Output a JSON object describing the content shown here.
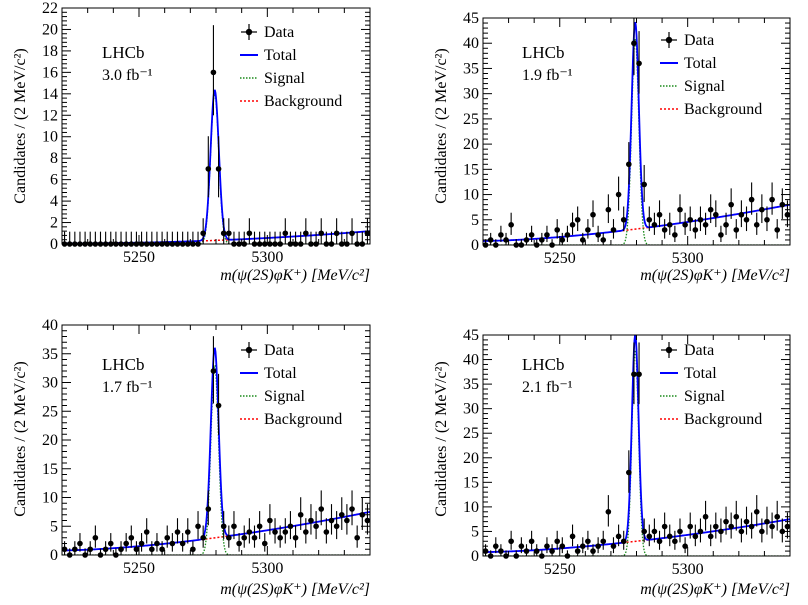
{
  "chart_data": [
    {
      "type": "scatter",
      "experiment": "LHCb",
      "luminosity": "3.0 fb⁻¹",
      "xlabel": "m(ψ(2S)φK⁺) [MeV/c²]",
      "ylabel": "Candidates / (2 MeV/c²)",
      "xlim": [
        5220,
        5340
      ],
      "ylim": [
        0,
        22
      ],
      "xticks": [
        5250,
        5300
      ],
      "yticks": [
        0,
        2,
        4,
        6,
        8,
        10,
        12,
        14,
        16,
        18,
        20,
        22
      ],
      "legend": [
        "Data",
        "Total",
        "Signal",
        "Background"
      ],
      "model": {
        "peak": 5279.5,
        "sigma": 1.6,
        "amplitude": 14.0,
        "bkg_left": 0.05,
        "bkg_right": 1.2,
        "bkg_power": 2.0
      },
      "data": {
        "x": [
          5221,
          5223,
          5225,
          5227,
          5229,
          5231,
          5233,
          5235,
          5237,
          5239,
          5241,
          5243,
          5245,
          5247,
          5249,
          5251,
          5253,
          5255,
          5257,
          5259,
          5261,
          5263,
          5265,
          5267,
          5269,
          5271,
          5273,
          5275,
          5277,
          5279,
          5281,
          5283,
          5285,
          5287,
          5289,
          5291,
          5293,
          5295,
          5297,
          5299,
          5301,
          5303,
          5305,
          5307,
          5309,
          5311,
          5313,
          5315,
          5317,
          5319,
          5321,
          5323,
          5325,
          5327,
          5329,
          5331,
          5333,
          5335,
          5337,
          5339
        ],
        "y": [
          0,
          0,
          0,
          0,
          0,
          0,
          0,
          0,
          0,
          0,
          0,
          0,
          0,
          0,
          0,
          0,
          0,
          0,
          0,
          0,
          0,
          0,
          0,
          0,
          0,
          0,
          0,
          1,
          7,
          16,
          7,
          1,
          1,
          0,
          0,
          0,
          1,
          0,
          0,
          0,
          0,
          0,
          0,
          1,
          0,
          0,
          0,
          1,
          0,
          0,
          1,
          0,
          0,
          1,
          0,
          0,
          1,
          0,
          0,
          1
        ]
      }
    },
    {
      "type": "scatter",
      "experiment": "LHCb",
      "luminosity": "1.9 fb⁻¹",
      "xlabel": "m(ψ(2S)φK⁺) [MeV/c²]",
      "ylabel": "Candidates / (2 MeV/c²)",
      "xlim": [
        5220,
        5340
      ],
      "ylim": [
        0,
        45
      ],
      "xticks": [
        5250,
        5300
      ],
      "yticks": [
        0,
        5,
        10,
        15,
        20,
        25,
        30,
        35,
        40,
        45
      ],
      "legend": [
        "Data",
        "Total",
        "Signal",
        "Background"
      ],
      "model": {
        "peak": 5279.5,
        "sigma": 1.4,
        "amplitude": 41.0,
        "bkg_left": 0.8,
        "bkg_right": 8.0,
        "bkg_power": 1.6
      },
      "data": {
        "x": [
          5221,
          5223,
          5225,
          5227,
          5229,
          5231,
          5233,
          5235,
          5237,
          5239,
          5241,
          5243,
          5245,
          5247,
          5249,
          5251,
          5253,
          5255,
          5257,
          5259,
          5261,
          5263,
          5265,
          5267,
          5269,
          5271,
          5273,
          5275,
          5277,
          5279,
          5281,
          5283,
          5285,
          5287,
          5289,
          5291,
          5293,
          5295,
          5297,
          5299,
          5301,
          5303,
          5305,
          5307,
          5309,
          5311,
          5313,
          5315,
          5317,
          5319,
          5321,
          5323,
          5325,
          5327,
          5329,
          5331,
          5333,
          5335,
          5337,
          5339
        ],
        "y": [
          0,
          1,
          0,
          2,
          1,
          4,
          0,
          0,
          1,
          2,
          0,
          1,
          2,
          0,
          3,
          1,
          2,
          4,
          5,
          1,
          3,
          6,
          2,
          1,
          7,
          3,
          10,
          5,
          16,
          40,
          36,
          12,
          5,
          4,
          6,
          3,
          4,
          2,
          7,
          4,
          5,
          3,
          5,
          4,
          7,
          6,
          2,
          4,
          8,
          3,
          6,
          5,
          9,
          4,
          7,
          5,
          9,
          3,
          8,
          6
        ]
      }
    },
    {
      "type": "scatter",
      "experiment": "LHCb",
      "luminosity": "1.7 fb⁻¹",
      "xlabel": "m(ψ(2S)φK⁺) [MeV/c²]",
      "ylabel": "Candidates / (2 MeV/c²)",
      "xlim": [
        5220,
        5340
      ],
      "ylim": [
        0,
        40
      ],
      "xticks": [
        5250,
        5300
      ],
      "yticks": [
        0,
        5,
        10,
        15,
        20,
        25,
        30,
        35,
        40
      ],
      "legend": [
        "Data",
        "Total",
        "Signal",
        "Background"
      ],
      "model": {
        "peak": 5279.5,
        "sigma": 1.5,
        "amplitude": 33.0,
        "bkg_left": 0.8,
        "bkg_right": 7.5,
        "bkg_power": 1.6
      },
      "data": {
        "x": [
          5221,
          5223,
          5225,
          5227,
          5229,
          5231,
          5233,
          5235,
          5237,
          5239,
          5241,
          5243,
          5245,
          5247,
          5249,
          5251,
          5253,
          5255,
          5257,
          5259,
          5261,
          5263,
          5265,
          5267,
          5269,
          5271,
          5273,
          5275,
          5277,
          5279,
          5281,
          5283,
          5285,
          5287,
          5289,
          5291,
          5293,
          5295,
          5297,
          5299,
          5301,
          5303,
          5305,
          5307,
          5309,
          5311,
          5313,
          5315,
          5317,
          5319,
          5321,
          5323,
          5325,
          5327,
          5329,
          5331,
          5333,
          5335,
          5337,
          5339
        ],
        "y": [
          1,
          0,
          1,
          2,
          0,
          1,
          3,
          0,
          1,
          2,
          0,
          1,
          2,
          3,
          1,
          2,
          4,
          1,
          2,
          1,
          3,
          2,
          4,
          2,
          4,
          1,
          5,
          3,
          8,
          32,
          26,
          5,
          3,
          5,
          2,
          3,
          4,
          3,
          5,
          2,
          6,
          4,
          3,
          4,
          5,
          3,
          7,
          4,
          6,
          5,
          8,
          4,
          6,
          5,
          7,
          6,
          8,
          3,
          7,
          6
        ]
      }
    },
    {
      "type": "scatter",
      "experiment": "LHCb",
      "luminosity": "2.1 fb⁻¹",
      "xlabel": "m(ψ(2S)φK⁺) [MeV/c²]",
      "ylabel": "Candidates / (2 MeV/c²)",
      "xlim": [
        5220,
        5340
      ],
      "ylim": [
        0,
        45
      ],
      "xticks": [
        5250,
        5300
      ],
      "yticks": [
        0,
        5,
        10,
        15,
        20,
        25,
        30,
        35,
        40,
        45
      ],
      "legend": [
        "Data",
        "Total",
        "Signal",
        "Background"
      ],
      "model": {
        "peak": 5279.5,
        "sigma": 1.3,
        "amplitude": 42.0,
        "bkg_left": 0.8,
        "bkg_right": 7.5,
        "bkg_power": 1.6
      },
      "data": {
        "x": [
          5221,
          5223,
          5225,
          5227,
          5229,
          5231,
          5233,
          5235,
          5237,
          5239,
          5241,
          5243,
          5245,
          5247,
          5249,
          5251,
          5253,
          5255,
          5257,
          5259,
          5261,
          5263,
          5265,
          5267,
          5269,
          5271,
          5273,
          5275,
          5277,
          5279,
          5281,
          5283,
          5285,
          5287,
          5289,
          5291,
          5293,
          5295,
          5297,
          5299,
          5301,
          5303,
          5305,
          5307,
          5309,
          5311,
          5313,
          5315,
          5317,
          5319,
          5321,
          5323,
          5325,
          5327,
          5329,
          5331,
          5333,
          5335,
          5337,
          5339
        ],
        "y": [
          1,
          0,
          2,
          1,
          0,
          3,
          0,
          2,
          1,
          3,
          1,
          0,
          2,
          1,
          3,
          2,
          0,
          4,
          1,
          2,
          3,
          1,
          2,
          3,
          9,
          2,
          4,
          3,
          17,
          37,
          37,
          5,
          4,
          5,
          3,
          6,
          4,
          3,
          5,
          2,
          6,
          4,
          5,
          8,
          4,
          6,
          5,
          7,
          6,
          8,
          5,
          7,
          6,
          9,
          5,
          7,
          6,
          8,
          5,
          6
        ]
      }
    }
  ],
  "colors": {
    "data": "#000000",
    "total": "#0000ff",
    "signal": "#1a8a1a",
    "background": "#ff0000"
  }
}
